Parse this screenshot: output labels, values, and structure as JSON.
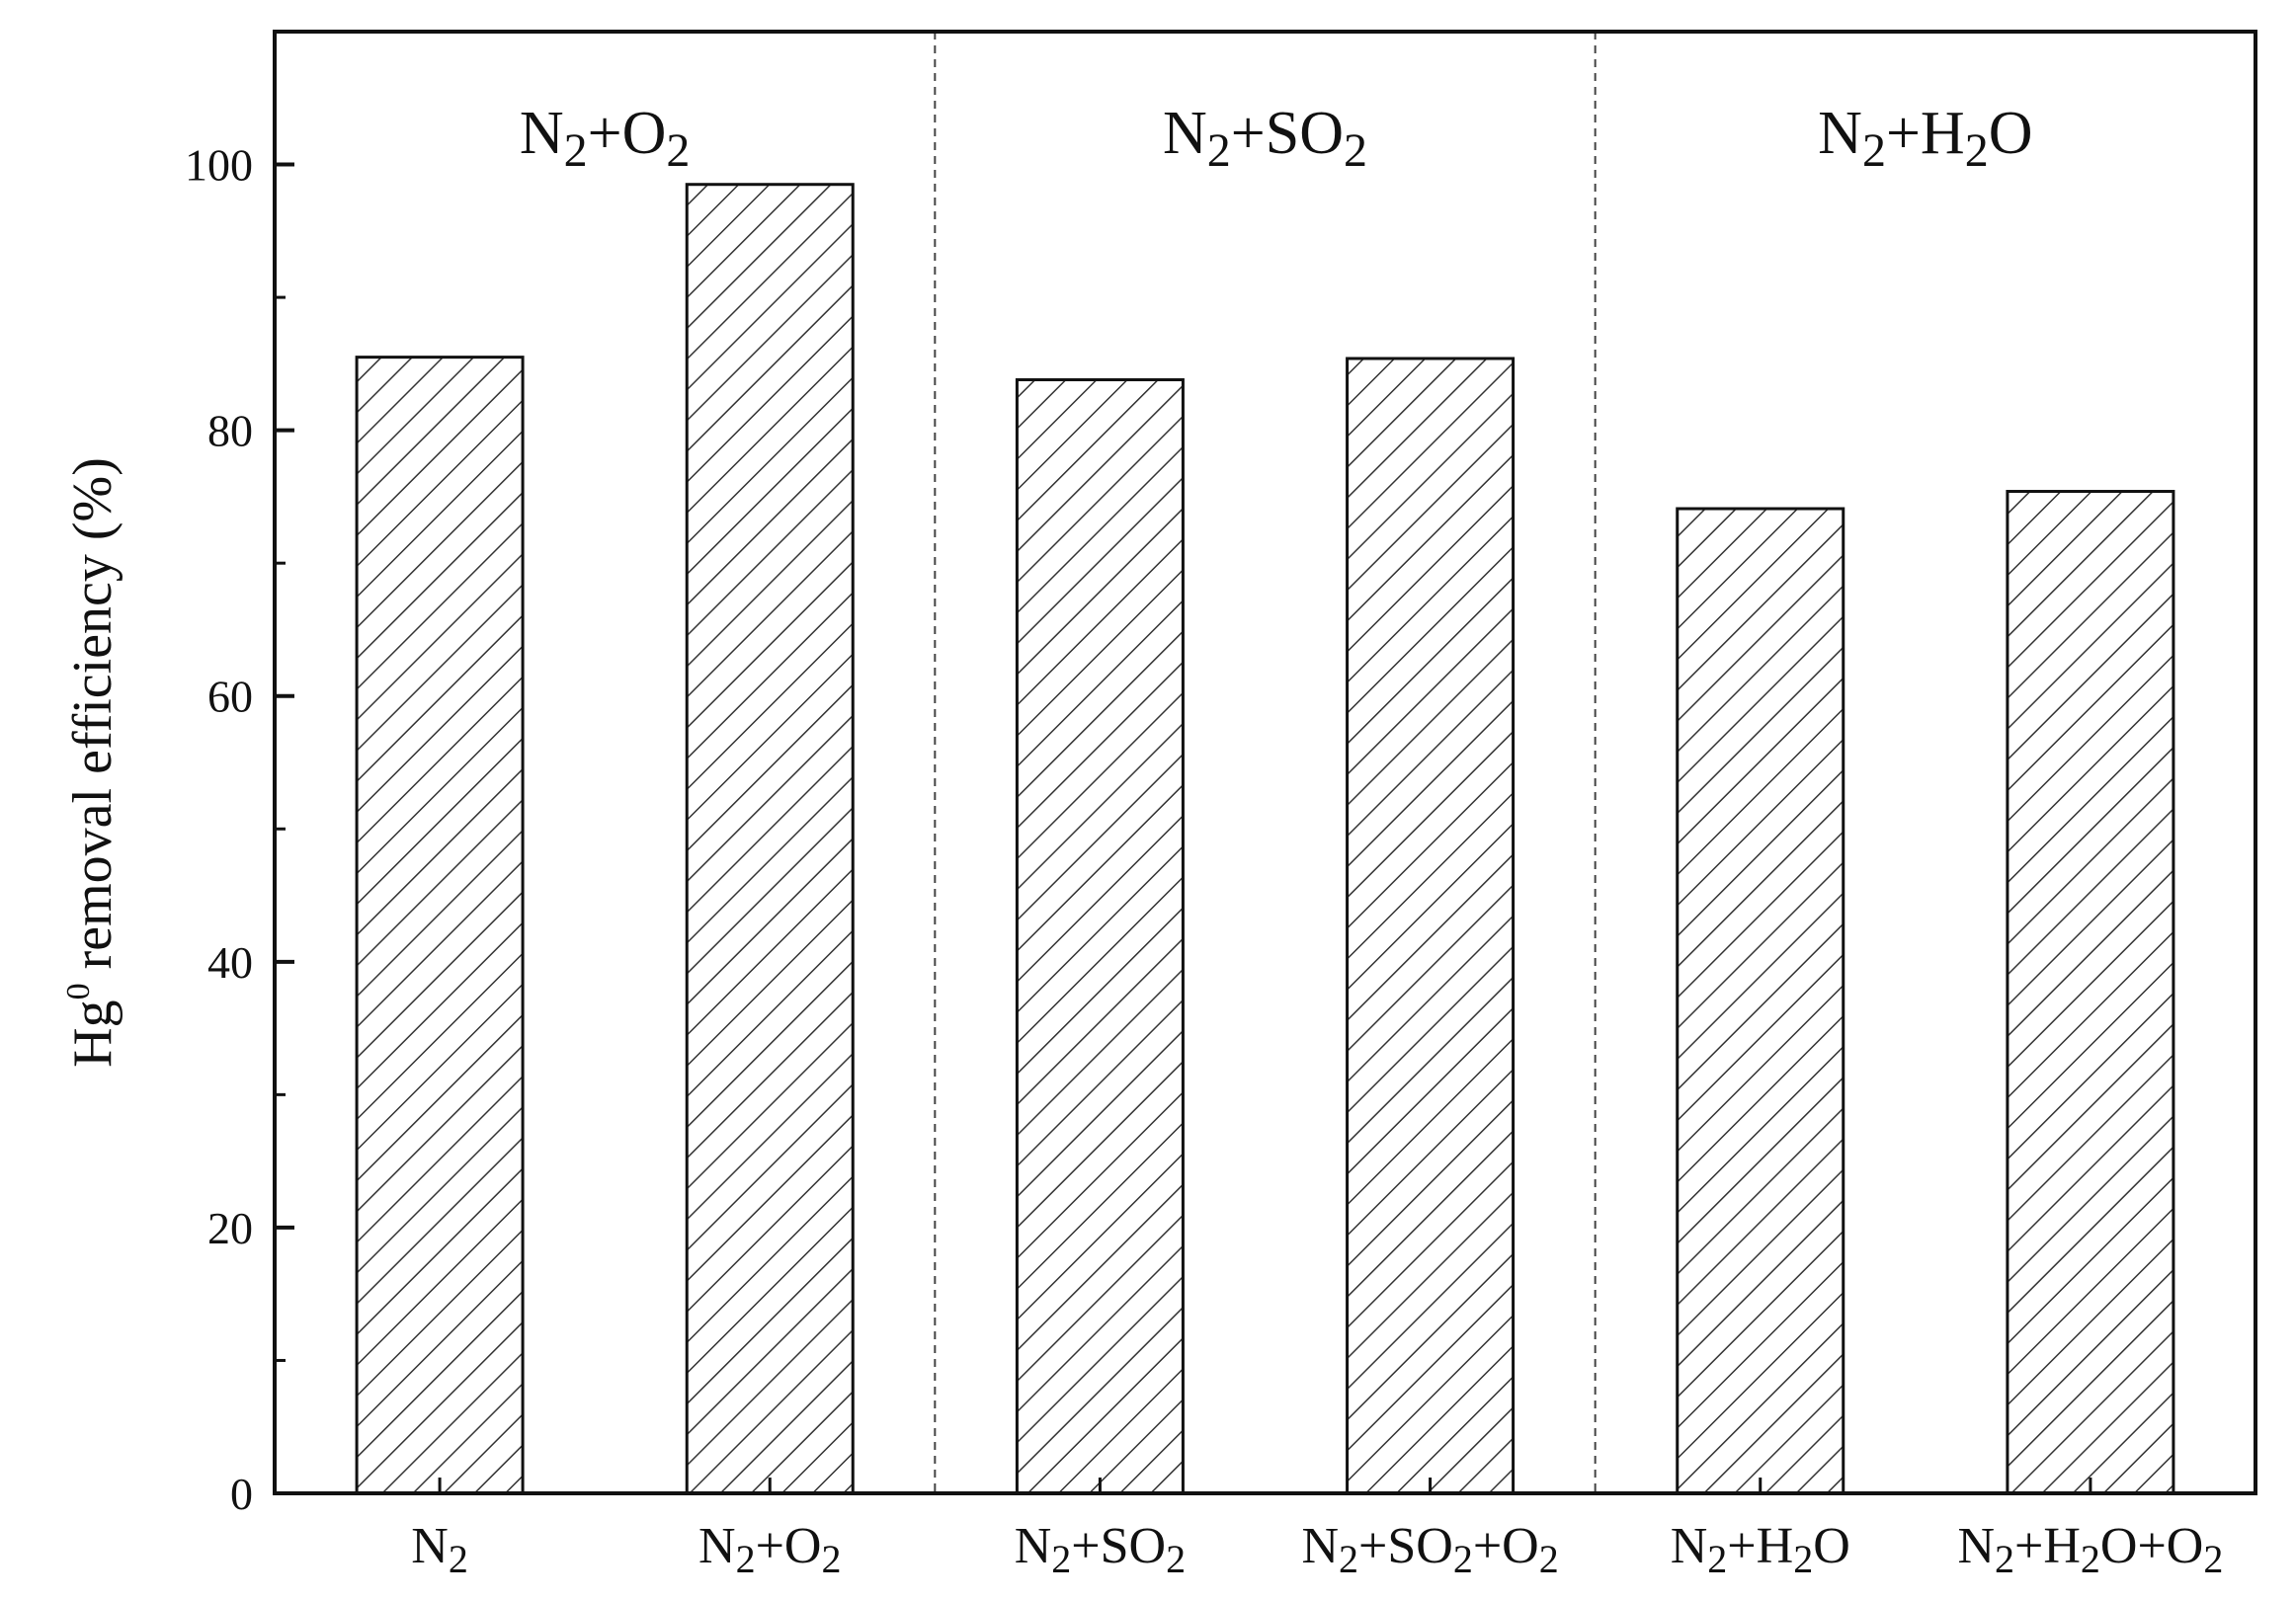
{
  "chart_data": {
    "type": "bar",
    "categories": [
      {
        "base": "N",
        "parts": [
          [
            "N",
            ""
          ],
          [
            "2",
            "sub"
          ]
        ]
      },
      {
        "base": "N+O",
        "parts": [
          [
            "N",
            ""
          ],
          [
            "2",
            "sub"
          ],
          [
            "+O",
            ""
          ],
          [
            "2",
            "sub"
          ]
        ]
      },
      {
        "base": "N+SO",
        "parts": [
          [
            "N",
            ""
          ],
          [
            "2",
            "sub"
          ],
          [
            "+SO",
            ""
          ],
          [
            "2",
            "sub"
          ]
        ]
      },
      {
        "base": "N+SO+O",
        "parts": [
          [
            "N",
            ""
          ],
          [
            "2",
            "sub"
          ],
          [
            "+SO",
            ""
          ],
          [
            "2",
            "sub"
          ],
          [
            "+O",
            ""
          ],
          [
            "2",
            "sub"
          ]
        ]
      },
      {
        "base": "N+HO",
        "parts": [
          [
            "N",
            ""
          ],
          [
            "2",
            "sub"
          ],
          [
            "+H",
            ""
          ],
          [
            "2",
            "sub"
          ],
          [
            "O",
            ""
          ]
        ]
      },
      {
        "base": "N+HO+O",
        "parts": [
          [
            "N",
            ""
          ],
          [
            "2",
            "sub"
          ],
          [
            "+H",
            ""
          ],
          [
            "2",
            "sub"
          ],
          [
            "O+O",
            ""
          ],
          [
            "2",
            "sub"
          ]
        ]
      }
    ],
    "values": [
      85.5,
      98.5,
      83.8,
      85.4,
      74.1,
      75.4
    ],
    "groups": [
      {
        "parts": [
          [
            "N",
            ""
          ],
          [
            "2",
            "sub"
          ],
          [
            "+O",
            ""
          ],
          [
            "2",
            "sub"
          ]
        ],
        "categories": [
          0,
          1
        ]
      },
      {
        "parts": [
          [
            "N",
            ""
          ],
          [
            "2",
            "sub"
          ],
          [
            "+SO",
            ""
          ],
          [
            "2",
            "sub"
          ]
        ],
        "categories": [
          2,
          3
        ]
      },
      {
        "parts": [
          [
            "N",
            ""
          ],
          [
            "2",
            "sub"
          ],
          [
            "+H",
            ""
          ],
          [
            "2",
            "sub"
          ],
          [
            "O",
            ""
          ]
        ],
        "categories": [
          4,
          5
        ]
      }
    ],
    "ylabel_parts": [
      [
        "Hg",
        ""
      ],
      [
        "0",
        "sup"
      ],
      [
        " removal efficiency (%)",
        ""
      ]
    ],
    "xlabel": "",
    "ylim": [
      0,
      110
    ],
    "yticks_major": [
      0,
      20,
      40,
      60,
      80,
      100
    ],
    "yticks_minor": [
      10,
      30,
      50,
      70,
      90
    ],
    "grid": false,
    "bar_pattern": "diagonal-hatch",
    "colors": {
      "bar_fill": "#ffffff",
      "bar_hatch": "#333333",
      "axis": "#111111",
      "divider": "#444444"
    }
  }
}
